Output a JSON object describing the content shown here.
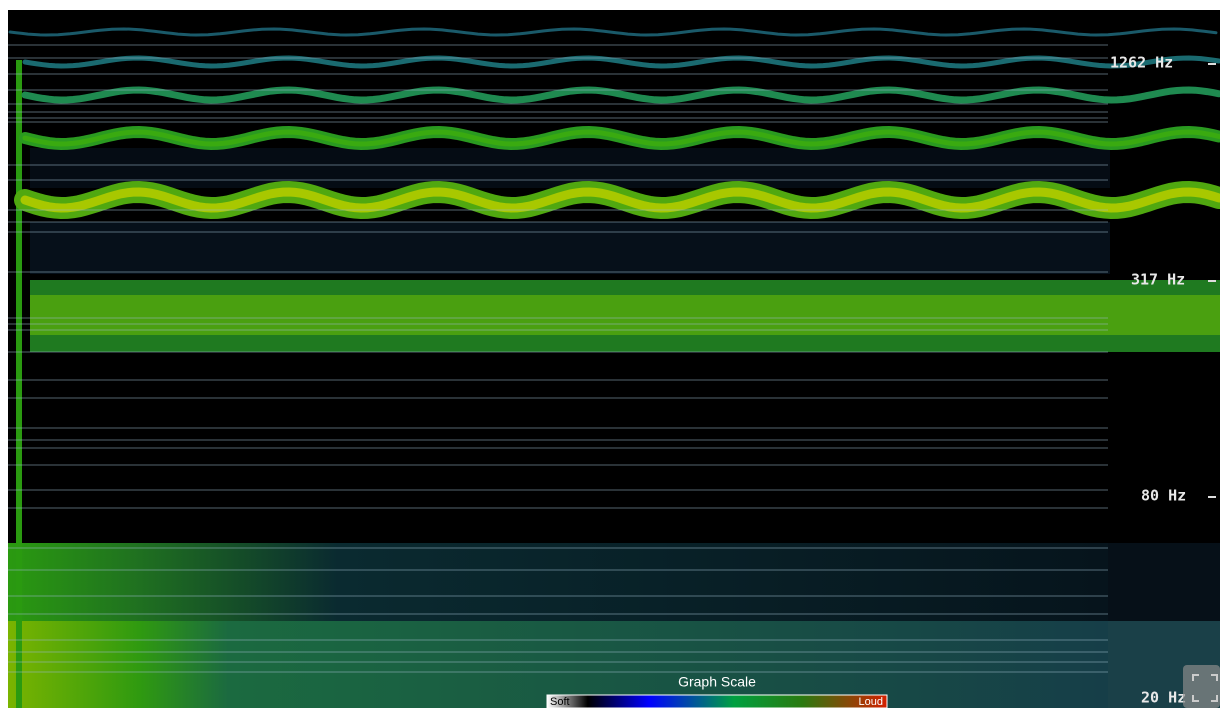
{
  "frequency_labels": [
    "1262 Hz",
    "317 Hz",
    "80 Hz",
    "20 Hz"
  ],
  "scale": {
    "title": "Graph Scale",
    "soft": "Soft",
    "loud": "Loud"
  }
}
